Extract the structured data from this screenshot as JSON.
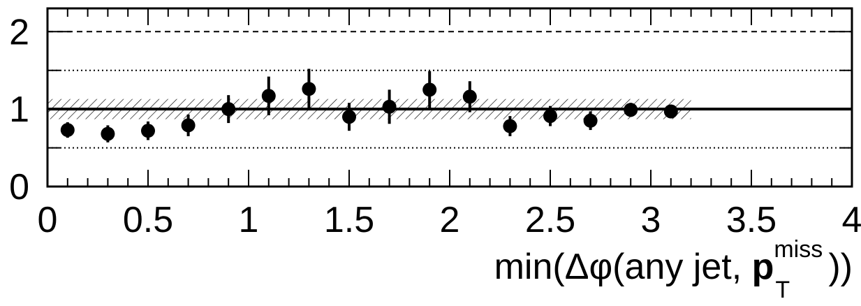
{
  "chart_data": {
    "type": "scatter",
    "xlabel": {
      "prefix": "min(Δφ(any jet, ",
      "bold": "p",
      "sub": "T",
      "sup": "miss",
      "suffix": "))"
    },
    "ylabel": "",
    "xlim": [
      0,
      4
    ],
    "ylim": [
      0,
      2.3
    ],
    "x_ticks": [
      "0",
      "0.5",
      "1",
      "1.5",
      "2",
      "2.5",
      "3",
      "3.5",
      "4"
    ],
    "x_tick_values": [
      0,
      0.5,
      1,
      1.5,
      2,
      2.5,
      3,
      3.5,
      4
    ],
    "y_ticks": [
      "0",
      "1",
      "2"
    ],
    "y_tick_values": [
      0,
      1,
      2
    ],
    "reference_line": 1,
    "dashed_lines": [
      2
    ],
    "dotted_lines": [
      0.5,
      1.5
    ],
    "band": {
      "from_x": 0,
      "to_x": 3.2,
      "y_low": 0.87,
      "y_high": 1.13
    },
    "series": [
      {
        "x": [
          0.1,
          0.3,
          0.5,
          0.7,
          0.9,
          1.1,
          1.3,
          1.5,
          1.7,
          1.9,
          2.1,
          2.3,
          2.5,
          2.7,
          2.9,
          3.1
        ],
        "y": [
          0.73,
          0.68,
          0.72,
          0.79,
          1.0,
          1.17,
          1.26,
          0.9,
          1.03,
          1.25,
          1.16,
          0.78,
          0.91,
          0.85,
          0.99,
          0.97
        ],
        "yerr": [
          0.1,
          0.11,
          0.12,
          0.14,
          0.18,
          0.25,
          0.26,
          0.18,
          0.22,
          0.24,
          0.2,
          0.13,
          0.13,
          0.12,
          0.09,
          0.08
        ]
      }
    ]
  }
}
